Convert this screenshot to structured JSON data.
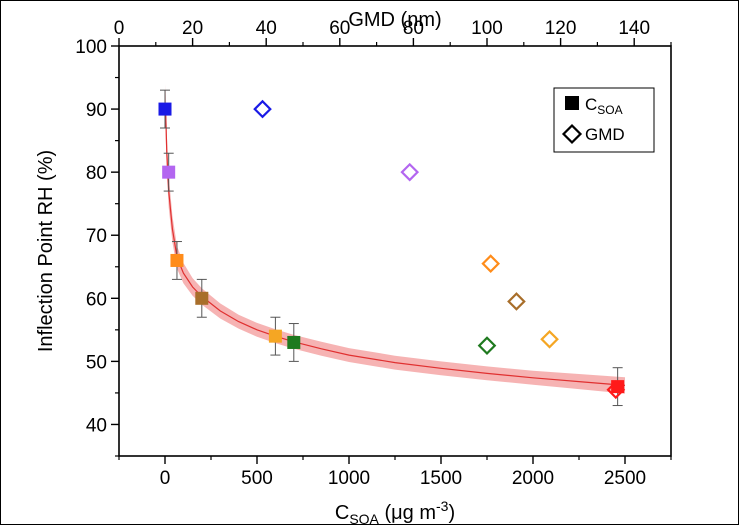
{
  "chart_data": {
    "type": "scatter",
    "title": "",
    "xlabel": "C",
    "xlabel_sub": "SOA",
    "xlabel_unit_pre": " (μg m",
    "xlabel_unit_sup": "-3",
    "xlabel_unit_post": ")",
    "x2label": "GMD (nm)",
    "ylabel": "Inflection Point RH (%)",
    "xlim": [
      -250,
      2750
    ],
    "x2lim": [
      0,
      150
    ],
    "ylim": [
      35,
      100
    ],
    "x_ticks": [
      0,
      500,
      1000,
      1500,
      2000,
      2500
    ],
    "x_tick_labels": [
      "0",
      "500",
      "1000",
      "1500",
      "2000",
      "2500"
    ],
    "x2_ticks": [
      0,
      20,
      40,
      60,
      80,
      100,
      120,
      140
    ],
    "x2_tick_labels": [
      "0",
      "20",
      "40",
      "60",
      "80",
      "100",
      "120",
      "140"
    ],
    "y_ticks": [
      40,
      50,
      60,
      70,
      80,
      90,
      100
    ],
    "y_tick_labels": [
      "40",
      "50",
      "60",
      "70",
      "80",
      "90",
      "100"
    ],
    "grid": false,
    "legend": {
      "position": "top-right",
      "entries": [
        {
          "label": "C",
          "sub": "SOA",
          "marker": "square-filled"
        },
        {
          "label": "GMD",
          "sub": "",
          "marker": "diamond-open"
        }
      ]
    },
    "series": [
      {
        "axis": "bottom",
        "marker": "square-filled",
        "points": [
          {
            "x": 0,
            "y": 90,
            "err": 3,
            "color": "#1a1ae6"
          },
          {
            "x": 20,
            "y": 80,
            "err": 3,
            "color": "#b366f0"
          },
          {
            "x": 65,
            "y": 66,
            "err": 3,
            "color": "#ff8c1a"
          },
          {
            "x": 200,
            "y": 60,
            "err": 3,
            "color": "#a86e2a"
          },
          {
            "x": 600,
            "y": 54,
            "err": 3,
            "color": "#f5a623"
          },
          {
            "x": 700,
            "y": 53,
            "err": 3,
            "color": "#1f7a1f"
          },
          {
            "x": 2460,
            "y": 46,
            "err": 3,
            "color": "#ff1a1a"
          }
        ]
      },
      {
        "axis": "top",
        "marker": "diamond-open",
        "points": [
          {
            "x": 39,
            "y": 90,
            "color": "#1a1ae6"
          },
          {
            "x": 79,
            "y": 80,
            "color": "#b366f0"
          },
          {
            "x": 101,
            "y": 65.5,
            "color": "#ff8c1a"
          },
          {
            "x": 108,
            "y": 59.5,
            "color": "#a86e2a"
          },
          {
            "x": 117,
            "y": 53.5,
            "color": "#f5a623"
          },
          {
            "x": 100,
            "y": 52.5,
            "color": "#1f7a1f"
          },
          {
            "x": 135,
            "y": 45.5,
            "color": "#ff1a1a"
          }
        ]
      }
    ],
    "fit_curve": {
      "color": "#e03030",
      "band_color": "#f4a0a0",
      "points": [
        [
          3,
          90
        ],
        [
          10,
          83
        ],
        [
          20,
          77
        ],
        [
          40,
          71
        ],
        [
          65,
          66.5
        ],
        [
          100,
          64
        ],
        [
          150,
          61.8
        ],
        [
          200,
          60.3
        ],
        [
          300,
          58
        ],
        [
          400,
          56.3
        ],
        [
          500,
          55
        ],
        [
          600,
          54
        ],
        [
          700,
          53.1
        ],
        [
          850,
          52
        ],
        [
          1000,
          51
        ],
        [
          1250,
          49.8
        ],
        [
          1500,
          48.9
        ],
        [
          1750,
          48.1
        ],
        [
          2000,
          47.4
        ],
        [
          2250,
          46.8
        ],
        [
          2500,
          46.2
        ]
      ],
      "band_halfwidth": [
        4,
        3.2,
        2.6,
        2.1,
        1.8,
        1.6,
        1.4,
        1.3,
        1.2,
        1.1,
        1.1,
        1.1,
        1.1,
        1.1,
        1.1,
        1.1,
        1.1,
        1.1,
        1.1,
        1.2,
        1.3
      ]
    }
  }
}
